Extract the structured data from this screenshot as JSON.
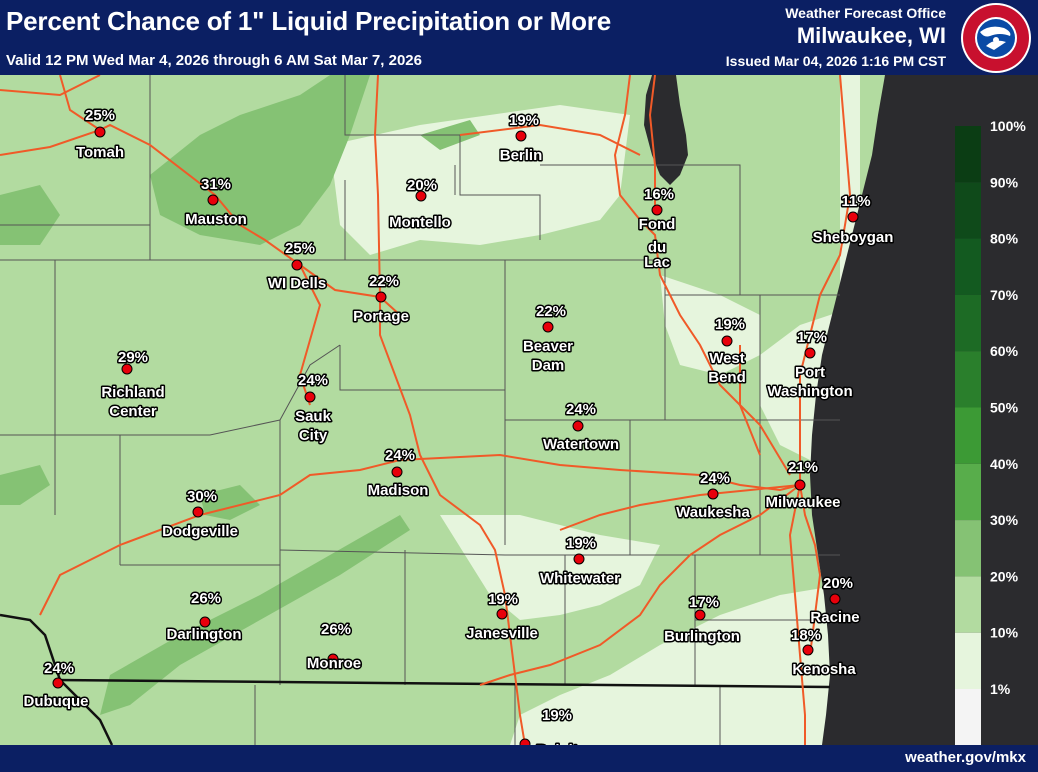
{
  "header": {
    "title": "Percent Chance of 1\" Liquid Precipitation or More",
    "valid": "Valid 12 PM Wed Mar 4, 2026 through 6 AM Sat Mar 7, 2026",
    "office": "Weather Forecast Office",
    "city": "Milwaukee, WI",
    "issued": "Issued Mar 04, 2026 1:16 PM CST",
    "logo_text": "NATIONAL WEATHER SERVICE"
  },
  "footer": {
    "site": "weather.gov/mkx"
  },
  "colors": {
    "lake": "#2b2b2e",
    "road": "#f05a28",
    "border": "#111111",
    "county": "#555555",
    "city_dot": "#e8000b"
  },
  "legend": {
    "labels": [
      "100%",
      "90%",
      "80%",
      "70%",
      "60%",
      "50%",
      "40%",
      "30%",
      "20%",
      "10%",
      "1%"
    ],
    "colors": [
      "#0b3d14",
      "#0f4a1a",
      "#135a20",
      "#1d6b25",
      "#2a7f2c",
      "#3c9a35",
      "#58ad4b",
      "#85c274",
      "#b2dba0",
      "#e6f5dd",
      "#f4f4f4"
    ]
  },
  "cities": [
    {
      "name": "Tomah",
      "pct": "25%"
    },
    {
      "name": "Mauston",
      "pct": "31%"
    },
    {
      "name": "WI Dells",
      "pct": "25%"
    },
    {
      "name": "Berlin",
      "pct": "19%"
    },
    {
      "name": "Montello",
      "pct": "20%"
    },
    {
      "name": "Fond du Lac",
      "pct": "16%"
    },
    {
      "name": "Sheboygan",
      "pct": "11%"
    },
    {
      "name": "Portage",
      "pct": "22%"
    },
    {
      "name": "Beaver Dam",
      "pct": "22%"
    },
    {
      "name": "West Bend",
      "pct": "19%"
    },
    {
      "name": "Port Washington",
      "pct": "17%"
    },
    {
      "name": "Richland Center",
      "pct": "29%"
    },
    {
      "name": "Sauk City",
      "pct": "24%"
    },
    {
      "name": "Watertown",
      "pct": "24%"
    },
    {
      "name": "Madison",
      "pct": "24%"
    },
    {
      "name": "Waukesha",
      "pct": "24%"
    },
    {
      "name": "Milwaukee",
      "pct": "21%"
    },
    {
      "name": "Dodgeville",
      "pct": "30%"
    },
    {
      "name": "Whitewater",
      "pct": "19%"
    },
    {
      "name": "Darlington",
      "pct": "26%"
    },
    {
      "name": "Janesville",
      "pct": "19%"
    },
    {
      "name": "Burlington",
      "pct": "17%"
    },
    {
      "name": "Racine",
      "pct": "20%"
    },
    {
      "name": "Monroe",
      "pct": "26%"
    },
    {
      "name": "Kenosha",
      "pct": "18%"
    },
    {
      "name": "Dubuque",
      "pct": "24%"
    },
    {
      "name": "Beloit",
      "pct": "19%"
    }
  ]
}
